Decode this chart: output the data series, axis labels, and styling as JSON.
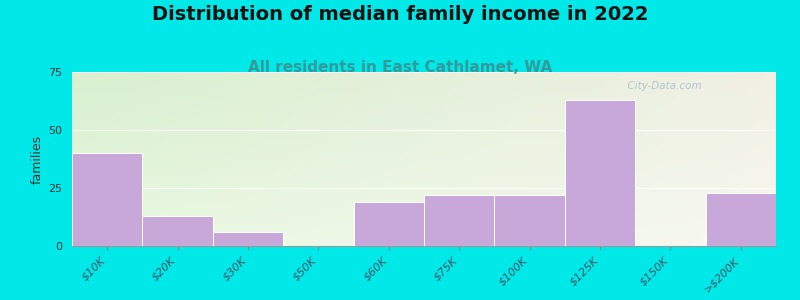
{
  "title": "Distribution of median family income in 2022",
  "subtitle": "All residents in East Cathlamet, WA",
  "ylabel": "families",
  "categories": [
    "$10K",
    "$20K",
    "$30K",
    "$50K",
    "$60K",
    "$75K",
    "$100K",
    "$125K",
    "$150K",
    ">$200K"
  ],
  "values": [
    40,
    13,
    6,
    0,
    19,
    22,
    22,
    63,
    0,
    23
  ],
  "bar_color": "#c8a8d8",
  "bar_edgecolor": "#ffffff",
  "background_outer": "#00e8e8",
  "plot_bg_left_top": "#d8f0d0",
  "plot_bg_left_bot": "#e8f8e0",
  "plot_bg_right_top": "#f0f0e4",
  "plot_bg_right_bot": "#f8f8f0",
  "ylim": [
    0,
    75
  ],
  "yticks": [
    0,
    25,
    50,
    75
  ],
  "title_fontsize": 14,
  "subtitle_fontsize": 11,
  "subtitle_color": "#339999",
  "ylabel_fontsize": 9,
  "tick_fontsize": 8,
  "watermark_text": "  City-Data.com",
  "watermark_color": "#aabbcc"
}
